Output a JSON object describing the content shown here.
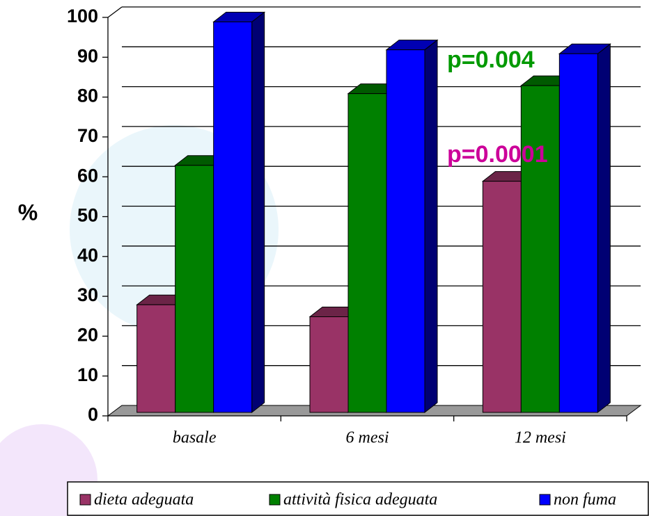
{
  "chart_data": {
    "type": "bar3d",
    "y_label": "%",
    "categories": [
      "basale",
      "6 mesi",
      "12 mesi"
    ],
    "series": [
      {
        "name": "dieta adeguata",
        "color": "#993366",
        "values": [
          27,
          24,
          58
        ]
      },
      {
        "name": "attività fisica adeguata",
        "color": "#008000",
        "values": [
          62,
          80,
          82
        ]
      },
      {
        "name": "non fuma",
        "color": "#0000ff",
        "values": [
          98,
          91,
          90
        ]
      }
    ],
    "annotations": [
      {
        "text": "p=0.004",
        "color": "#009900"
      },
      {
        "text": "p=0.0001",
        "color": "#cc0099"
      }
    ],
    "ylim": [
      0,
      100
    ],
    "yticks": [
      0,
      10,
      20,
      30,
      40,
      50,
      60,
      70,
      80,
      90,
      100
    ],
    "grid": true,
    "legend": "bottom"
  }
}
